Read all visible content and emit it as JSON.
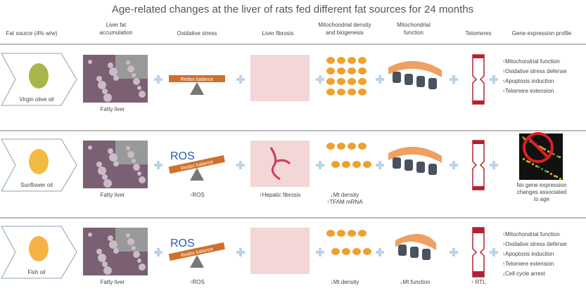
{
  "header": {
    "title": "Age-related changes at the liver of rats fed different fat sources for 24 months",
    "columns": [
      "Fat source (4% w/w)",
      "Liver fat accumulation",
      "Oxidative stress",
      "Liver fibrosis",
      "Mitochondrial density and biogenesis",
      "Mitochondrial function",
      "Telomeres",
      "Gene expression profile"
    ]
  },
  "rows": [
    {
      "fat_source": "Virgin olive oil",
      "liver_caption": "Fatty liver",
      "redox_label": "Redox balance",
      "gene_expression": [
        "↑Mitochondrial function",
        "↑Oxidative stress defense",
        "↑Apoptosis induction",
        "↑Telomere extension"
      ]
    },
    {
      "fat_source": "Sunflower oil",
      "liver_caption": "Fatty liver",
      "ros_label": "ROS",
      "redox_label": "Redox balance",
      "oxidative_caption": "↑ROS",
      "fibrosis_caption": "↑Hepatic fibrosis",
      "mito_density_captions": [
        "↓Mt density",
        "↑TFAM mRNA"
      ],
      "gene_expression_note": "No gene expression changes associated to age"
    },
    {
      "fat_source": "Fish oil",
      "liver_caption": "Fatty liver",
      "ros_label": "ROS",
      "redox_label": "Redox balance",
      "oxidative_caption": "↑ROS",
      "mito_density_captions": [
        "↓Mt density"
      ],
      "mito_function_caption": "↓Mt function",
      "telomere_caption": "↑ RTL",
      "gene_expression": [
        "↑Mitochondrial function",
        "↑Oxidative stress defense",
        "↑Apoptosis induction",
        "↑Telomere extension",
        "↓Cell cycle arrest"
      ]
    }
  ]
}
